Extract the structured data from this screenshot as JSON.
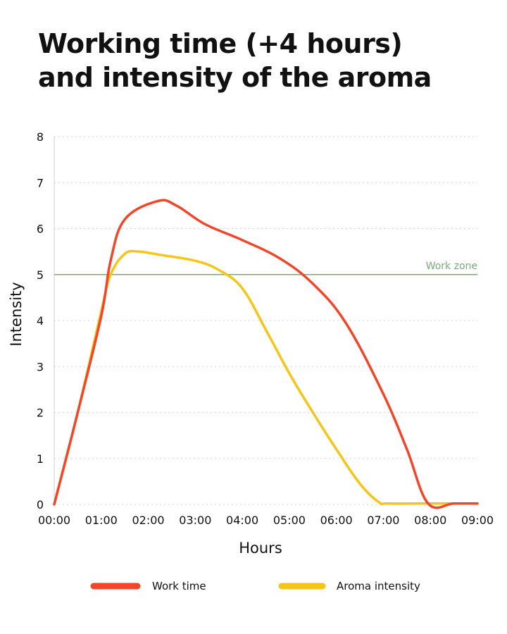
{
  "title_lines": [
    "Working time (+4 hours)",
    "and intensity of the aroma"
  ],
  "chart_data": {
    "type": "line",
    "title": "Working time (+4 hours) and intensity of the aroma",
    "xlabel": "Hours",
    "ylabel": "Intensity",
    "x_tick_labels": [
      "00:00",
      "01:00",
      "02:00",
      "03:00",
      "04:00",
      "05:00",
      "06:00",
      "07:00",
      "08:00",
      "09:00"
    ],
    "xlim": [
      0,
      9
    ],
    "ylim": [
      0,
      8
    ],
    "y_ticks": [
      0,
      1,
      2,
      3,
      4,
      5,
      6,
      7,
      8
    ],
    "grid": {
      "horizontal": true,
      "style": "dotted"
    },
    "reference_line": {
      "y": 5,
      "label": "Work zone",
      "color": "#7aa97a"
    },
    "series": [
      {
        "name": "Work time",
        "color": "#f2452a",
        "x": [
          0,
          0.5,
          1.0,
          1.2,
          1.5,
          2.2,
          2.6,
          3.2,
          4.0,
          4.8,
          5.5,
          6.2,
          7.0,
          7.5,
          7.95,
          8.5,
          9.0
        ],
        "y": [
          0,
          2.0,
          4.1,
          5.3,
          6.2,
          6.6,
          6.5,
          6.1,
          5.75,
          5.35,
          4.8,
          3.95,
          2.4,
          1.2,
          0.02,
          0.02,
          0.02
        ]
      },
      {
        "name": "Aroma intensity",
        "color": "#f5c518",
        "x": [
          0,
          0.5,
          1.0,
          1.2,
          1.5,
          1.8,
          2.3,
          3.0,
          3.5,
          4.0,
          4.5,
          5.0,
          5.5,
          6.0,
          6.5,
          6.9,
          7.1,
          8.0,
          9.0
        ],
        "y": [
          0,
          2.0,
          4.2,
          5.0,
          5.45,
          5.5,
          5.42,
          5.3,
          5.1,
          4.7,
          3.8,
          2.85,
          2.0,
          1.2,
          0.45,
          0.05,
          0.02,
          0.02,
          0.02
        ]
      }
    ],
    "legend": {
      "placement": "bottom-center",
      "entries": [
        "Work time",
        "Aroma intensity"
      ]
    }
  }
}
